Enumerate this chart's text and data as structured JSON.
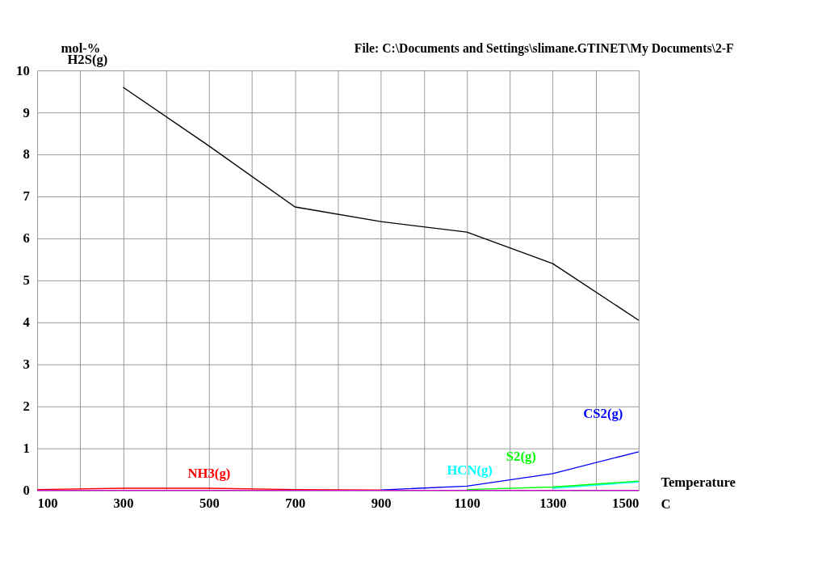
{
  "chart_data": {
    "type": "line",
    "ylabel": "mol-%",
    "xlabel": "Temperature\nC",
    "annotations": [
      "File: C:\\Documents and Settings\\slimane.GTINET\\My Documents\\2-F"
    ],
    "x": [
      100,
      300,
      500,
      700,
      900,
      1100,
      1300,
      1500
    ],
    "series": [
      {
        "name": "H2S(g)",
        "color": "#000000",
        "values": [
          null,
          9.6,
          8.2,
          6.75,
          6.4,
          6.15,
          5.4,
          4.05
        ]
      },
      {
        "name": "NH3(g)",
        "color": "#ff0000",
        "values": [
          0.02,
          0.05,
          0.05,
          0.02,
          0.01,
          null,
          null,
          null
        ]
      },
      {
        "name": "HCN(g)",
        "color": "#00ffff",
        "values": [
          null,
          null,
          null,
          null,
          null,
          null,
          0.05,
          0.2
        ]
      },
      {
        "name": "S2(g)",
        "color": "#00ff00",
        "values": [
          null,
          null,
          null,
          null,
          null,
          0.02,
          0.08,
          0.22
        ]
      },
      {
        "name": "CS2(g)",
        "color": "#0000ff",
        "values": [
          null,
          null,
          null,
          null,
          0.01,
          0.1,
          0.4,
          0.92
        ]
      },
      {
        "color": "#cc00cc",
        "values": [
          0,
          0,
          0,
          0,
          0,
          0,
          0,
          0
        ]
      }
    ],
    "xlim": [
      100,
      1500
    ],
    "ylim": [
      0,
      10
    ],
    "xticks": [
      100,
      {
        "value": 200,
        "label": null
      },
      300,
      {
        "value": 400,
        "label": null
      },
      500,
      {
        "value": 600,
        "label": null
      },
      700,
      {
        "value": 800,
        "label": null
      },
      900,
      {
        "value": 1000,
        "label": null
      },
      1100,
      {
        "value": 1200,
        "label": null
      },
      1300,
      {
        "value": 1400,
        "label": null
      },
      1500
    ],
    "yticks": [
      0,
      1,
      2,
      3,
      4,
      5,
      6,
      7,
      8,
      9,
      10
    ],
    "grid": true,
    "legend": false,
    "marker": "none",
    "line_style": "solid"
  }
}
